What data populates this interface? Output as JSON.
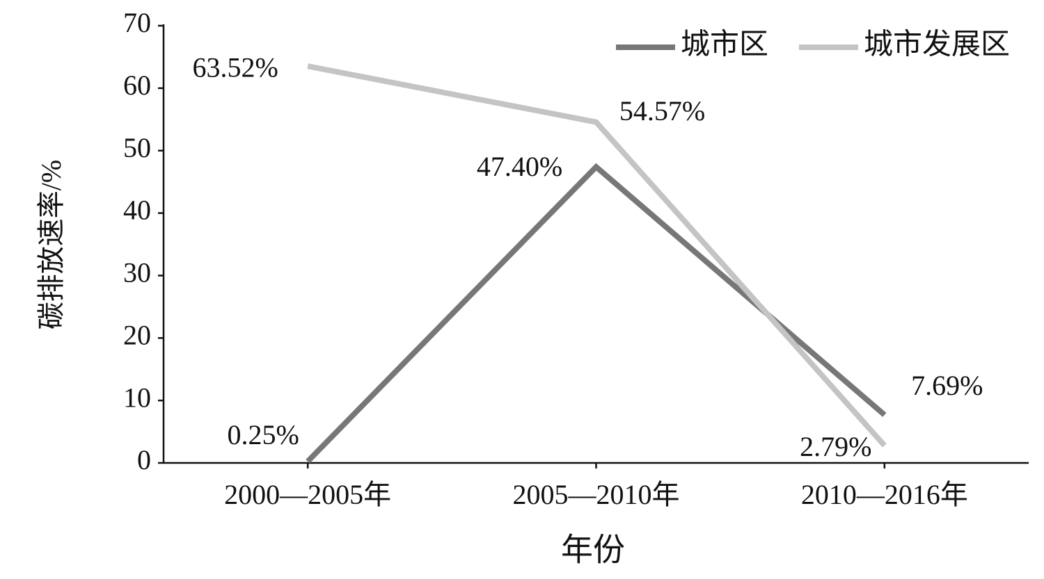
{
  "chart_data": {
    "type": "line",
    "categories": [
      "2000—2005年",
      "2005—2010年",
      "2010—2016年"
    ],
    "series": [
      {
        "name": "城市区",
        "color": "#777777",
        "values": [
          0.25,
          47.4,
          7.69
        ],
        "value_labels": [
          "0.25%",
          "47.40%",
          "7.69%"
        ]
      },
      {
        "name": "城市发展区",
        "color": "#c4c4c4",
        "values": [
          63.52,
          54.57,
          2.79
        ],
        "value_labels": [
          "63.52%",
          "54.57%",
          "2.79%"
        ]
      }
    ],
    "ylabel": "碳排放速率/%",
    "xlabel": "年份",
    "ylim": [
      0,
      70
    ],
    "yticks": [
      0,
      10,
      20,
      30,
      40,
      50,
      60,
      70
    ],
    "legend": "upper right"
  }
}
